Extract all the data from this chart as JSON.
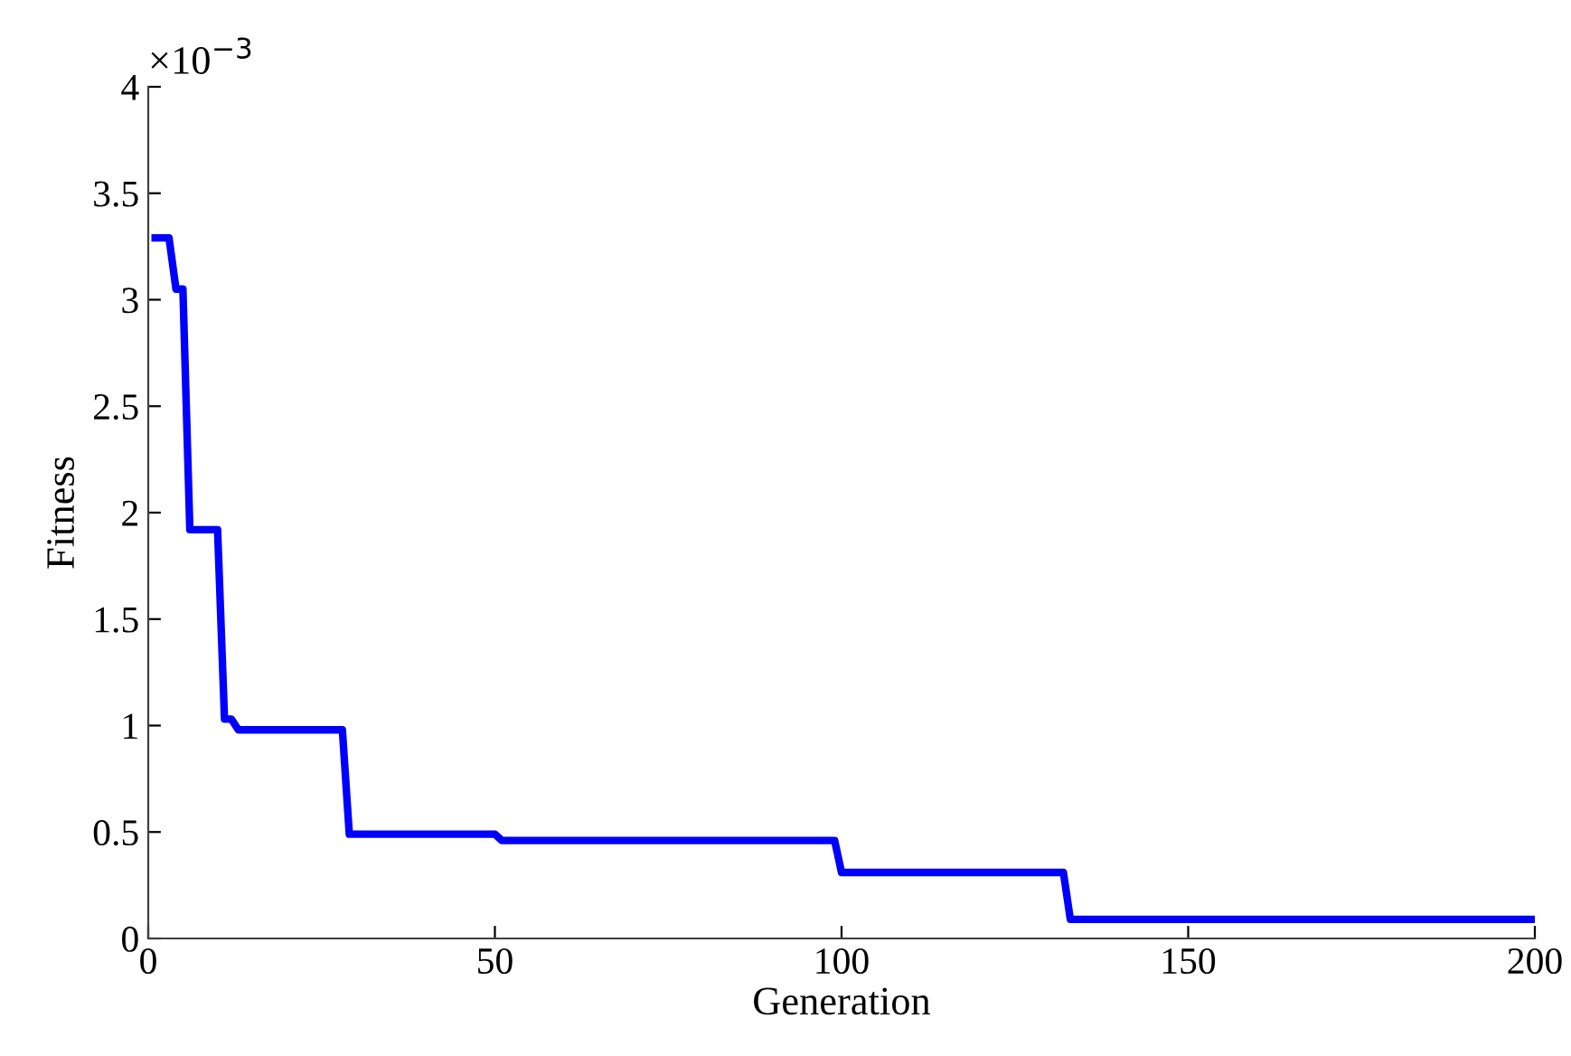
{
  "chart_data": {
    "type": "line",
    "xlabel": "Generation",
    "ylabel": "Fitness",
    "annotations": [
      "×10$^{−3}$"
    ],
    "x": [
      1,
      3,
      4,
      5,
      6,
      10,
      11,
      12,
      13,
      28,
      29,
      50,
      51,
      99,
      100,
      132,
      133,
      200
    ],
    "series": [
      {
        "color": "#0000ff",
        "values": [
          3.29,
          3.29,
          3.05,
          3.05,
          1.92,
          1.92,
          1.03,
          1.03,
          0.98,
          0.98,
          0.49,
          0.49,
          0.46,
          0.46,
          0.31,
          0.31,
          0.09,
          0.09
        ]
      }
    ],
    "xlim": [
      0,
      200
    ],
    "xticks": [
      0,
      50,
      100,
      150,
      200
    ],
    "ylim": [
      0,
      4
    ],
    "yticks": [
      0,
      0.5,
      1,
      1.5,
      2,
      2.5,
      3,
      3.5,
      4
    ],
    "grid": false,
    "marker": "none",
    "line_style": "solid"
  }
}
